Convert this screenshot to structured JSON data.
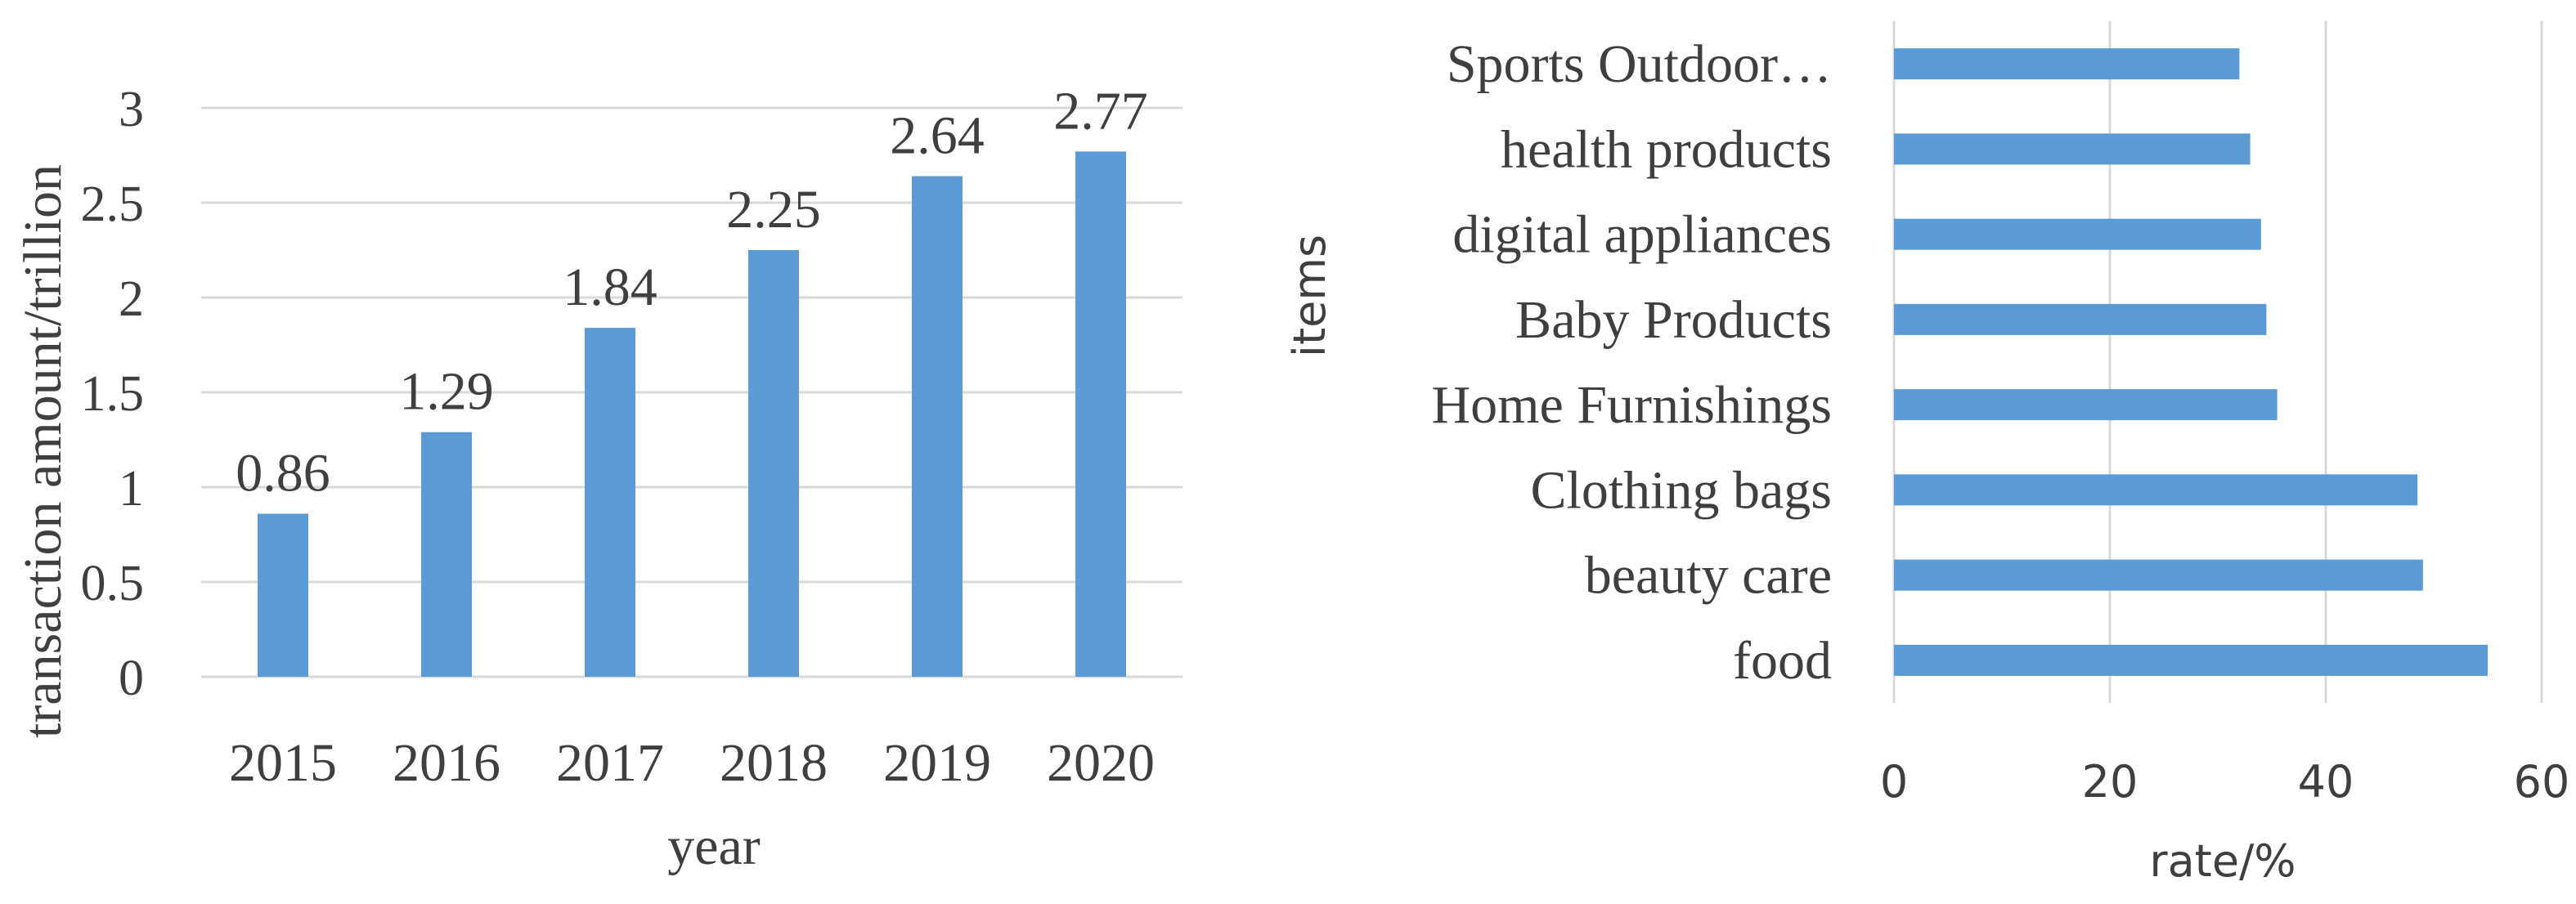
{
  "chart_data": [
    {
      "type": "bar",
      "orientation": "vertical",
      "categories": [
        "2015",
        "2016",
        "2017",
        "2018",
        "2019",
        "2020"
      ],
      "values": [
        0.86,
        1.29,
        1.84,
        2.25,
        2.64,
        2.77
      ],
      "data_labels": [
        "0.86",
        "1.29",
        "1.84",
        "2.25",
        "2.64",
        "2.77"
      ],
      "xlabel": "year",
      "ylabel": "transaction amount/trillion",
      "ylim": [
        0,
        3
      ],
      "yticks": [
        0,
        0.5,
        1,
        1.5,
        2,
        2.5,
        3
      ],
      "ytick_labels": [
        "0",
        "0.5",
        "1",
        "1.5",
        "2",
        "2.5",
        "3"
      ],
      "grid": true,
      "color": "#5b9bd5"
    },
    {
      "type": "bar",
      "orientation": "horizontal",
      "categories": [
        "food",
        "beauty care",
        "Clothing bags",
        "Home Furnishings",
        "Baby Products",
        "digital appliances",
        "health products",
        "Sports Outdoor…"
      ],
      "values": [
        55,
        49,
        48.5,
        35.5,
        34.5,
        34,
        33,
        32
      ],
      "xlabel": "rate/%",
      "ylabel": "items",
      "xlim": [
        0,
        60
      ],
      "xticks": [
        0,
        20,
        40,
        60
      ],
      "xtick_labels": [
        "0",
        "20",
        "40",
        "60"
      ],
      "grid": true,
      "color": "#5b9bd5"
    }
  ]
}
